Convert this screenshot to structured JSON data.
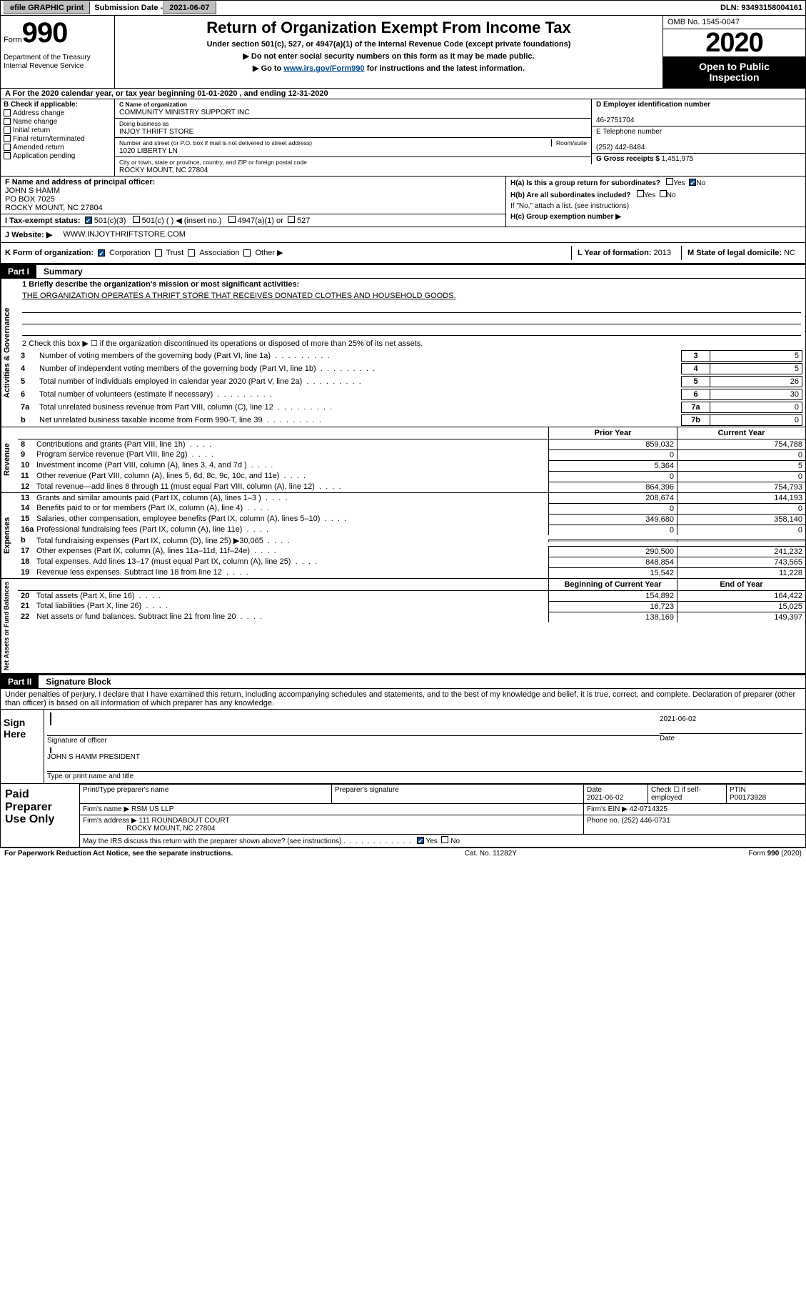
{
  "topbar": {
    "efile_label": "efile GRAPHIC print",
    "submission_label": "Submission Date -",
    "submission_date": "2021-06-07",
    "dln_label": "DLN:",
    "dln": "93493158004161"
  },
  "header": {
    "form_prefix": "Form",
    "form_number": "990",
    "dept1": "Department of the Treasury",
    "dept2": "Internal Revenue Service",
    "title": "Return of Organization Exempt From Income Tax",
    "sub": "Under section 501(c), 527, or 4947(a)(1) of the Internal Revenue Code (except private foundations)",
    "instr1": "▶ Do not enter social security numbers on this form as it may be made public.",
    "instr2_pre": "▶ Go to ",
    "instr2_link": "www.irs.gov/Form990",
    "instr2_post": " for instructions and the latest information.",
    "omb_label": "OMB No.",
    "omb": "1545-0047",
    "year": "2020",
    "open1": "Open to Public",
    "open2": "Inspection"
  },
  "lineA": "A For the 2020 calendar year, or tax year beginning 01-01-2020    , and ending 12-31-2020",
  "blockB": {
    "label": "B Check if applicable:",
    "items": [
      "Address change",
      "Name change",
      "Initial return",
      "Final return/terminated",
      "Amended return",
      "Application pending"
    ]
  },
  "blockC": {
    "name_lbl": "C Name of organization",
    "name": "COMMUNITY MINISTRY SUPPORT INC",
    "dba_lbl": "Doing business as",
    "dba": "INJOY THRIFT STORE",
    "street_lbl": "Number and street (or P.O. box if mail is not delivered to street address)",
    "room_lbl": "Room/suite",
    "street": "1020 LIBERTY LN",
    "city_lbl": "City or town, state or province, country, and ZIP or foreign postal code",
    "city": "ROCKY MOUNT, NC  27804"
  },
  "blockD": {
    "lbl": "D Employer identification number",
    "val": "46-2751704"
  },
  "blockE": {
    "lbl": "E Telephone number",
    "val": "(252) 442-8484"
  },
  "blockG": {
    "lbl": "G Gross receipts $",
    "val": "1,451,975"
  },
  "blockF": {
    "lbl": "F  Name and address of principal officer:",
    "name": "JOHN S HAMM",
    "addr1": "PO BOX 7025",
    "addr2": "ROCKY MOUNT, NC  27804"
  },
  "blockH": {
    "a_lbl": "H(a)  Is this a group return for subordinates?",
    "b_lbl": "H(b)  Are all subordinates included?",
    "ifno": "If \"No,\" attach a list. (see instructions)",
    "c_lbl": "H(c)  Group exemption number ▶",
    "yes": "Yes",
    "no": "No"
  },
  "blockI": {
    "lbl": "I  Tax-exempt status:",
    "opts": [
      "501(c)(3)",
      "501(c) (  ) ◀ (insert no.)",
      "4947(a)(1) or",
      "527"
    ]
  },
  "blockJ": {
    "lbl": "J  Website: ▶",
    "val": "WWW.INJOYTHRIFTSTORE.COM"
  },
  "blockK": {
    "lbl": "K Form of organization:",
    "opts": [
      "Corporation",
      "Trust",
      "Association",
      "Other ▶"
    ]
  },
  "blockL": {
    "lbl": "L Year of formation:",
    "val": "2013"
  },
  "blockM": {
    "lbl": "M State of legal domicile:",
    "val": "NC"
  },
  "partI": {
    "tag": "Part I",
    "title": "Summary"
  },
  "p1": {
    "l1_lbl": "1  Briefly describe the organization's mission or most significant activities:",
    "l1_val": "THE ORGANIZATION OPERATES A THRIFT STORE THAT RECEIVES DONATED CLOTHES AND HOUSEHOLD GOODS.",
    "l2": "2   Check this box ▶ ☐  if the organization discontinued its operations or disposed of more than 25% of its net assets.",
    "rows_single": [
      {
        "n": "3",
        "t": "Number of voting members of the governing body (Part VI, line 1a)",
        "box": "3",
        "v": "5"
      },
      {
        "n": "4",
        "t": "Number of independent voting members of the governing body (Part VI, line 1b)",
        "box": "4",
        "v": "5"
      },
      {
        "n": "5",
        "t": "Total number of individuals employed in calendar year 2020 (Part V, line 2a)",
        "box": "5",
        "v": "26"
      },
      {
        "n": "6",
        "t": "Total number of volunteers (estimate if necessary)",
        "box": "6",
        "v": "30"
      },
      {
        "n": "7a",
        "t": "Total unrelated business revenue from Part VIII, column (C), line 12",
        "box": "7a",
        "v": "0"
      },
      {
        "n": "b",
        "t": "Net unrelated business taxable income from Form 990-T, line 39",
        "box": "7b",
        "v": "0"
      }
    ],
    "col_prior": "Prior Year",
    "col_current": "Current Year",
    "revenue_rows": [
      {
        "n": "8",
        "t": "Contributions and grants (Part VIII, line 1h)",
        "p": "859,032",
        "c": "754,788"
      },
      {
        "n": "9",
        "t": "Program service revenue (Part VIII, line 2g)",
        "p": "0",
        "c": "0"
      },
      {
        "n": "10",
        "t": "Investment income (Part VIII, column (A), lines 3, 4, and 7d )",
        "p": "5,364",
        "c": "5"
      },
      {
        "n": "11",
        "t": "Other revenue (Part VIII, column (A), lines 5, 6d, 8c, 9c, 10c, and 11e)",
        "p": "0",
        "c": "0"
      },
      {
        "n": "12",
        "t": "Total revenue—add lines 8 through 11 (must equal Part VIII, column (A), line 12)",
        "p": "864,396",
        "c": "754,793"
      }
    ],
    "expense_rows": [
      {
        "n": "13",
        "t": "Grants and similar amounts paid (Part IX, column (A), lines 1–3 )",
        "p": "208,674",
        "c": "144,193"
      },
      {
        "n": "14",
        "t": "Benefits paid to or for members (Part IX, column (A), line 4)",
        "p": "0",
        "c": "0"
      },
      {
        "n": "15",
        "t": "Salaries, other compensation, employee benefits (Part IX, column (A), lines 5–10)",
        "p": "349,680",
        "c": "358,140"
      },
      {
        "n": "16a",
        "t": "Professional fundraising fees (Part IX, column (A), line 11e)",
        "p": "0",
        "c": "0"
      },
      {
        "n": "b",
        "t": "Total fundraising expenses (Part IX, column (D), line 25) ▶30,065",
        "p": "SHADE",
        "c": "SHADE"
      },
      {
        "n": "17",
        "t": "Other expenses (Part IX, column (A), lines 11a–11d, 11f–24e)",
        "p": "290,500",
        "c": "241,232"
      },
      {
        "n": "18",
        "t": "Total expenses. Add lines 13–17 (must equal Part IX, column (A), line 25)",
        "p": "848,854",
        "c": "743,565"
      },
      {
        "n": "19",
        "t": "Revenue less expenses. Subtract line 18 from line 12",
        "p": "15,542",
        "c": "11,228"
      }
    ],
    "col_begin": "Beginning of Current Year",
    "col_end": "End of Year",
    "netassets_rows": [
      {
        "n": "20",
        "t": "Total assets (Part X, line 16)",
        "p": "154,892",
        "c": "164,422"
      },
      {
        "n": "21",
        "t": "Total liabilities (Part X, line 26)",
        "p": "16,723",
        "c": "15,025"
      },
      {
        "n": "22",
        "t": "Net assets or fund balances. Subtract line 21 from line 20",
        "p": "138,169",
        "c": "149,397"
      }
    ]
  },
  "vert_labels": {
    "gov": "Activities & Governance",
    "rev": "Revenue",
    "exp": "Expenses",
    "net": "Net Assets or Fund Balances"
  },
  "partII": {
    "tag": "Part II",
    "title": "Signature Block"
  },
  "sig": {
    "penalty": "Under penalties of perjury, I declare that I have examined this return, including accompanying schedules and statements, and to the best of my knowledge and belief, it is true, correct, and complete. Declaration of preparer (other than officer) is based on all information of which preparer has any knowledge.",
    "sign_here": "Sign Here",
    "sig_officer_lbl": "Signature of officer",
    "date_lbl": "Date",
    "date_val": "2021-06-02",
    "name_title": "JOHN S HAMM PRESIDENT",
    "name_title_lbl": "Type or print name and title"
  },
  "prep": {
    "label": "Paid Preparer Use Only",
    "h1": "Print/Type preparer's name",
    "h2": "Preparer's signature",
    "h3": "Date",
    "h3v": "2021-06-02",
    "h4": "Check ☐ if self-employed",
    "h5": "PTIN",
    "h5v": "P00173928",
    "firm_lbl": "Firm's name    ▶",
    "firm": "RSM US LLP",
    "ein_lbl": "Firm's EIN ▶",
    "ein": "42-0714325",
    "addr_lbl": "Firm's address ▶",
    "addr1": "111 ROUNDABOUT COURT",
    "addr2": "ROCKY MOUNT, NC  27804",
    "phone_lbl": "Phone no.",
    "phone": "(252) 446-0731",
    "discuss": "May the IRS discuss this return with the preparer shown above? (see instructions)",
    "yes": "Yes",
    "no": "No"
  },
  "footer": {
    "l": "For Paperwork Reduction Act Notice, see the separate instructions.",
    "m": "Cat. No. 11282Y",
    "r": "Form 990 (2020)"
  },
  "colors": {
    "link": "#004b8d",
    "check": "#004b8d"
  }
}
